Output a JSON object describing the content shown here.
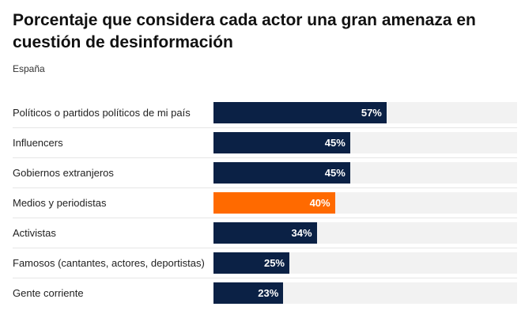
{
  "title": "Porcentaje que considera cada actor una gran amenaza en cuestión de desinformación",
  "subtitle": "España",
  "colors": {
    "default": "#0b2145",
    "highlight": "#ff6a00",
    "track": "#f2f2f2"
  },
  "chart_data": {
    "type": "bar",
    "orientation": "horizontal",
    "title": "Porcentaje que considera cada actor una gran amenaza en cuestión de desinformación",
    "subtitle": "España",
    "xlim": [
      0,
      100
    ],
    "unit": "%",
    "grid": false,
    "categories": [
      "Políticos o partidos políticos de mi país",
      "Influencers",
      "Gobiernos extranjeros",
      "Medios y periodistas",
      "Activistas",
      "Famosos (cantantes, actores, deportistas)",
      "Gente corriente"
    ],
    "values": [
      57,
      45,
      45,
      40,
      34,
      25,
      23
    ],
    "value_labels": [
      "57%",
      "45%",
      "45%",
      "40%",
      "34%",
      "25%",
      "23%"
    ],
    "highlight_index": 3
  }
}
